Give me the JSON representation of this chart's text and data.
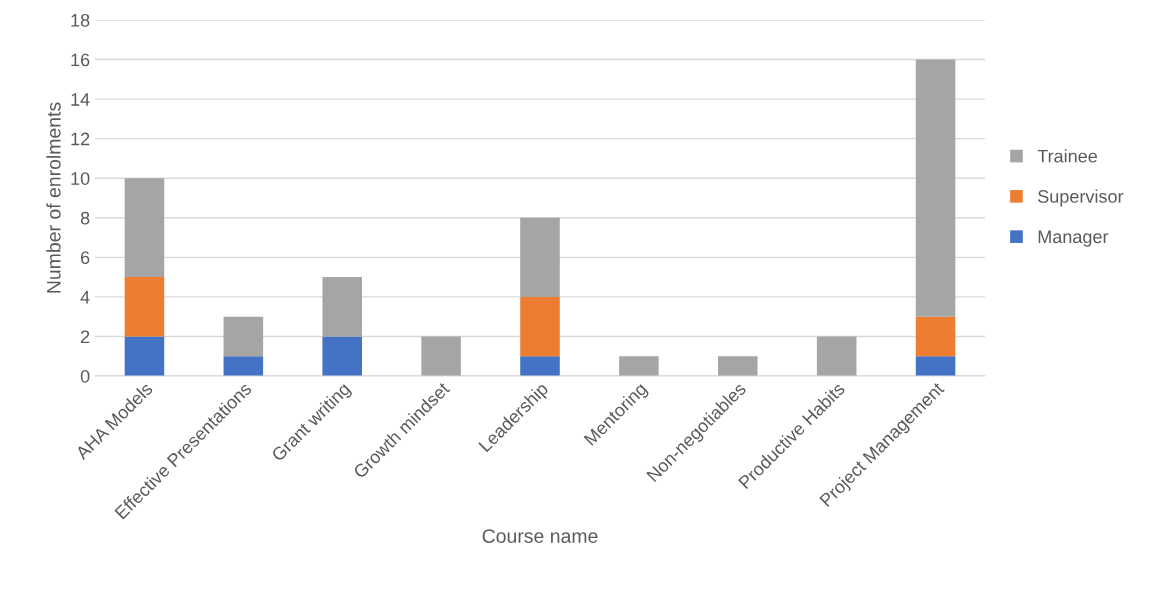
{
  "chart_data": {
    "type": "bar",
    "stacked": true,
    "xlabel": "Course name",
    "ylabel": "Number of enrolments",
    "categories": [
      "AHA Models",
      "Effective Presentations",
      "Grant writing",
      "Growth mindset",
      "Leadership",
      "Mentoring",
      "Non-negotiables",
      "Productive Habits",
      "Project Management"
    ],
    "series": [
      {
        "name": "Manager",
        "color": "#4472c4",
        "values": [
          2,
          1,
          2,
          0,
          1,
          0,
          0,
          0,
          1
        ]
      },
      {
        "name": "Supervisor",
        "color": "#ed7d31",
        "values": [
          3,
          0,
          0,
          0,
          3,
          0,
          0,
          0,
          2
        ]
      },
      {
        "name": "Trainee",
        "color": "#a5a5a5",
        "values": [
          5,
          2,
          3,
          2,
          4,
          1,
          1,
          2,
          13
        ]
      }
    ],
    "ylim": [
      0,
      18
    ],
    "yticks": [
      0,
      2,
      4,
      6,
      8,
      10,
      12,
      14,
      16,
      18
    ],
    "grid": "y",
    "legend": "right"
  }
}
